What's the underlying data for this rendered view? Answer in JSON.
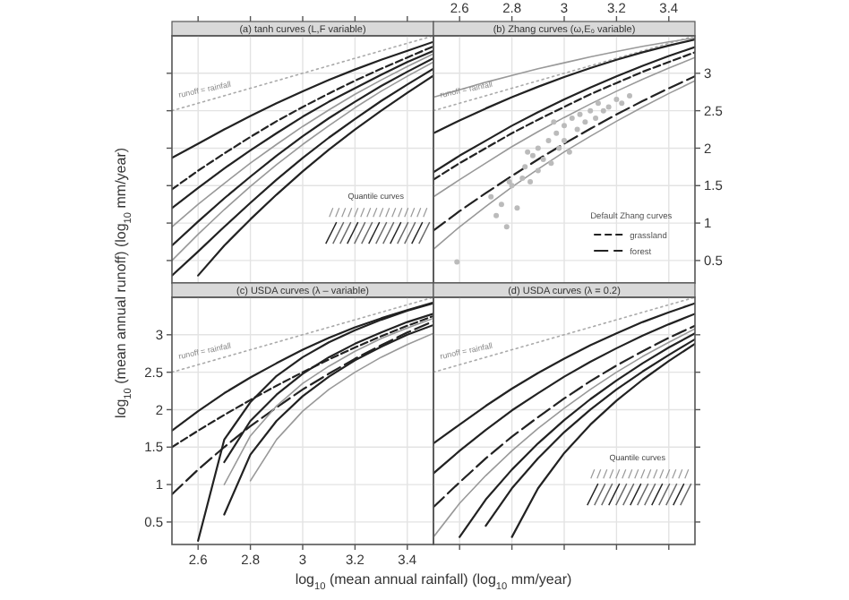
{
  "chart_data": [
    {
      "type": "line",
      "title": "(a) tanh curves (L,F variable)",
      "x": [
        2.5,
        2.6,
        2.7,
        2.8,
        2.9,
        3.0,
        3.1,
        3.2,
        3.3,
        3.4,
        3.5
      ],
      "xlim": [
        2.5,
        3.5
      ],
      "ylim": [
        0.2,
        3.5
      ],
      "xticks": [
        2.6,
        2.8,
        3.0,
        3.2,
        3.4
      ],
      "yticks": [
        0.5,
        1.0,
        1.5,
        2.0,
        2.5,
        3.0
      ],
      "tick_labels": false,
      "grid": true,
      "annotations": [
        "runoff = rainfall",
        "Quantile curves"
      ],
      "series": [
        {
          "color": "#aaaaaa",
          "line_style": "dotted",
          "values": [
            2.5,
            2.6,
            2.7,
            2.8,
            2.9,
            3.0,
            3.1,
            3.2,
            3.3,
            3.4,
            3.5
          ]
        },
        {
          "color": "#222222",
          "line_style": "solid",
          "values": [
            1.87,
            2.06,
            2.25,
            2.43,
            2.6,
            2.76,
            2.91,
            3.05,
            3.18,
            3.3,
            3.42
          ]
        },
        {
          "color": "#222222",
          "line_style": "dashed",
          "values": [
            1.45,
            1.7,
            1.93,
            2.15,
            2.36,
            2.55,
            2.73,
            2.9,
            3.06,
            3.21,
            3.36
          ]
        },
        {
          "color": "#222222",
          "line_style": "solid",
          "values": [
            1.2,
            1.47,
            1.73,
            1.97,
            2.2,
            2.42,
            2.62,
            2.8,
            2.98,
            3.15,
            3.3
          ]
        },
        {
          "color": "#999999",
          "line_style": "solid",
          "values": [
            0.95,
            1.25,
            1.53,
            1.8,
            2.05,
            2.29,
            2.51,
            2.72,
            2.91,
            3.09,
            3.26
          ]
        },
        {
          "color": "#222222",
          "line_style": "solid",
          "values": [
            0.7,
            1.02,
            1.33,
            1.62,
            1.9,
            2.16,
            2.4,
            2.62,
            2.83,
            3.02,
            3.2
          ]
        },
        {
          "color": "#999999",
          "line_style": "solid",
          "values": [
            0.5,
            0.85,
            1.18,
            1.49,
            1.78,
            2.05,
            2.3,
            2.54,
            2.76,
            2.96,
            3.15
          ]
        },
        {
          "color": "#222222",
          "line_style": "solid",
          "values": [
            0.3,
            0.62,
            0.95,
            1.27,
            1.58,
            1.87,
            2.14,
            2.39,
            2.63,
            2.85,
            3.06
          ]
        },
        {
          "color": "#222222",
          "line_style": "solid",
          "values": [
            null,
            0.3,
            0.7,
            1.05,
            1.38,
            1.69,
            1.98,
            2.25,
            2.5,
            2.74,
            2.97
          ]
        }
      ]
    },
    {
      "type": "line",
      "title": "(b) Zhang curves (ω,E₀ variable)",
      "x": [
        2.5,
        2.6,
        2.7,
        2.8,
        2.9,
        3.0,
        3.1,
        3.2,
        3.3,
        3.4,
        3.5
      ],
      "xlim": [
        2.5,
        3.5
      ],
      "ylim": [
        0.2,
        3.5
      ],
      "xticks": [
        2.6,
        2.8,
        3.0,
        3.2,
        3.4
      ],
      "yticks": [
        0.5,
        1.0,
        1.5,
        2.0,
        2.5,
        3.0
      ],
      "grid": true,
      "legend": "bottom right",
      "legend_title": "Default Zhang curves",
      "annotations": [
        "runoff = rainfall"
      ],
      "series": [
        {
          "color": "#aaaaaa",
          "line_style": "dotted",
          "values": [
            2.5,
            2.6,
            2.7,
            2.8,
            2.9,
            3.0,
            3.1,
            3.2,
            3.3,
            3.4,
            3.5
          ]
        },
        {
          "color": "#999999",
          "line_style": "solid",
          "values": [
            2.68,
            2.78,
            2.88,
            2.97,
            3.06,
            3.14,
            3.22,
            3.29,
            3.36,
            3.42,
            3.47
          ]
        },
        {
          "color": "#222222",
          "line_style": "solid",
          "values": [
            2.2,
            2.37,
            2.53,
            2.68,
            2.82,
            2.95,
            3.07,
            3.18,
            3.28,
            3.37,
            3.45
          ]
        },
        {
          "color": "#222222",
          "line_style": "solid",
          "values": [
            1.68,
            1.9,
            2.1,
            2.3,
            2.48,
            2.65,
            2.81,
            2.96,
            3.1,
            3.23,
            3.35
          ]
        },
        {
          "name": "grassland",
          "color": "#222222",
          "line_style": "dashed",
          "values": [
            1.58,
            1.8,
            2.0,
            2.2,
            2.38,
            2.55,
            2.72,
            2.87,
            3.02,
            3.15,
            3.28
          ]
        },
        {
          "color": "#999999",
          "line_style": "solid",
          "values": [
            1.35,
            1.58,
            1.8,
            2.02,
            2.22,
            2.41,
            2.59,
            2.76,
            2.92,
            3.07,
            3.21
          ]
        },
        {
          "name": "forest",
          "color": "#222222",
          "line_style": "longdash",
          "values": [
            0.9,
            1.16,
            1.4,
            1.63,
            1.85,
            2.06,
            2.26,
            2.45,
            2.63,
            2.8,
            2.96
          ]
        },
        {
          "color": "#999999",
          "line_style": "solid",
          "values": [
            0.65,
            0.95,
            1.22,
            1.48,
            1.72,
            1.95,
            2.16,
            2.36,
            2.55,
            2.73,
            2.9
          ]
        },
        {
          "type": "scatter",
          "marker": "circle",
          "color": "#bbbbbb",
          "x": [
            2.59,
            2.72,
            2.74,
            2.76,
            2.78,
            2.8,
            2.82,
            2.84,
            2.85,
            2.87,
            2.88,
            2.9,
            2.9,
            2.92,
            2.94,
            2.95,
            2.97,
            2.98,
            3.0,
            3.0,
            3.02,
            3.03,
            3.05,
            3.06,
            3.08,
            3.1,
            3.12,
            3.13,
            3.15,
            3.17,
            3.2,
            3.22,
            3.25,
            2.96,
            2.86,
            2.79
          ],
          "values": [
            0.48,
            1.35,
            1.1,
            1.25,
            0.95,
            1.5,
            1.2,
            1.6,
            1.75,
            1.55,
            1.9,
            1.7,
            2.0,
            1.85,
            2.1,
            1.8,
            2.2,
            2.0,
            2.3,
            2.1,
            1.95,
            2.4,
            2.25,
            2.45,
            2.35,
            2.5,
            2.4,
            2.6,
            2.5,
            2.55,
            2.65,
            2.6,
            2.7,
            2.35,
            1.95,
            1.55
          ]
        }
      ]
    },
    {
      "type": "line",
      "title": "(c) USDA curves (λ – variable)",
      "xlabel": "log$_{10}$ (mean annual rainfall) (log$_{10}$ mm/year)",
      "ylabel": "log$_{10}$ (mean annual runoff) (log$_{10}$ mm/year)",
      "x": [
        2.5,
        2.6,
        2.7,
        2.8,
        2.9,
        3.0,
        3.1,
        3.2,
        3.3,
        3.4,
        3.5
      ],
      "xlim": [
        2.5,
        3.5
      ],
      "ylim": [
        0.2,
        3.5
      ],
      "xticks": [
        2.6,
        2.8,
        3.0,
        3.2,
        3.4
      ],
      "yticks": [
        0.5,
        1.0,
        1.5,
        2.0,
        2.5,
        3.0
      ],
      "grid": true,
      "annotations": [
        "runoff = rainfall"
      ],
      "series": [
        {
          "color": "#aaaaaa",
          "line_style": "dotted",
          "values": [
            2.5,
            2.6,
            2.7,
            2.8,
            2.9,
            3.0,
            3.1,
            3.2,
            3.3,
            3.4,
            3.5
          ]
        },
        {
          "color": "#222222",
          "line_style": "solid",
          "values": [
            1.72,
            1.98,
            2.22,
            2.43,
            2.62,
            2.8,
            2.96,
            3.1,
            3.22,
            3.33,
            3.43
          ]
        },
        {
          "color": "#222222",
          "line_style": "dashed",
          "values": [
            1.5,
            1.72,
            1.93,
            2.13,
            2.32,
            2.5,
            2.67,
            2.83,
            2.98,
            3.12,
            3.25
          ]
        },
        {
          "color": "#222222",
          "line_style": "longdash",
          "values": [
            0.87,
            1.2,
            1.5,
            1.78,
            2.03,
            2.27,
            2.48,
            2.68,
            2.86,
            3.03,
            3.18
          ]
        },
        {
          "color": "#222222",
          "line_style": "solid",
          "values": [
            null,
            0.25,
            1.6,
            2.1,
            2.45,
            2.7,
            2.9,
            3.06,
            3.2,
            3.32,
            3.42
          ]
        },
        {
          "color": "#222222",
          "line_style": "solid",
          "values": [
            null,
            null,
            1.3,
            1.85,
            2.2,
            2.48,
            2.7,
            2.88,
            3.03,
            3.17,
            3.28
          ]
        },
        {
          "color": "#999999",
          "line_style": "solid",
          "values": [
            null,
            null,
            1.0,
            1.65,
            2.05,
            2.35,
            2.58,
            2.78,
            2.95,
            3.09,
            3.22
          ]
        },
        {
          "color": "#222222",
          "line_style": "solid",
          "values": [
            null,
            null,
            0.6,
            1.4,
            1.85,
            2.18,
            2.44,
            2.66,
            2.84,
            3.0,
            3.13
          ]
        },
        {
          "color": "#999999",
          "line_style": "solid",
          "values": [
            null,
            null,
            null,
            1.05,
            1.6,
            1.98,
            2.27,
            2.5,
            2.7,
            2.87,
            3.02
          ]
        }
      ]
    },
    {
      "type": "line",
      "title": "(d) USDA curves (λ = 0.2)",
      "x": [
        2.5,
        2.6,
        2.7,
        2.8,
        2.9,
        3.0,
        3.1,
        3.2,
        3.3,
        3.4,
        3.5
      ],
      "xlim": [
        2.5,
        3.5
      ],
      "ylim": [
        0.2,
        3.5
      ],
      "xticks": [
        2.6,
        2.8,
        3.0,
        3.2,
        3.4
      ],
      "yticks": [
        0.5,
        1.0,
        1.5,
        2.0,
        2.5,
        3.0
      ],
      "tick_labels": false,
      "grid": true,
      "annotations": [
        "runoff = rainfall",
        "Quantile curves"
      ],
      "series": [
        {
          "color": "#aaaaaa",
          "line_style": "dotted",
          "values": [
            2.5,
            2.6,
            2.7,
            2.8,
            2.9,
            3.0,
            3.1,
            3.2,
            3.3,
            3.4,
            3.5
          ]
        },
        {
          "color": "#222222",
          "line_style": "solid",
          "values": [
            1.55,
            1.8,
            2.05,
            2.28,
            2.49,
            2.68,
            2.86,
            3.02,
            3.17,
            3.3,
            3.42
          ]
        },
        {
          "color": "#222222",
          "line_style": "solid",
          "values": [
            1.15,
            1.45,
            1.73,
            1.99,
            2.22,
            2.44,
            2.64,
            2.82,
            2.99,
            3.14,
            3.28
          ]
        },
        {
          "color": "#222222",
          "line_style": "longdash",
          "values": [
            0.7,
            1.03,
            1.35,
            1.64,
            1.9,
            2.15,
            2.38,
            2.59,
            2.78,
            2.96,
            3.12
          ]
        },
        {
          "color": "#999999",
          "line_style": "solid",
          "values": [
            0.3,
            0.75,
            1.12,
            1.45,
            1.75,
            2.02,
            2.27,
            2.5,
            2.71,
            2.9,
            3.08
          ]
        },
        {
          "color": "#222222",
          "line_style": "solid",
          "values": [
            null,
            0.3,
            0.8,
            1.2,
            1.55,
            1.86,
            2.14,
            2.39,
            2.62,
            2.83,
            3.02
          ]
        },
        {
          "color": "#222222",
          "line_style": "solid",
          "values": [
            null,
            null,
            0.45,
            0.95,
            1.35,
            1.7,
            2.0,
            2.27,
            2.51,
            2.73,
            2.94
          ]
        },
        {
          "color": "#222222",
          "line_style": "solid",
          "values": [
            null,
            null,
            null,
            0.3,
            0.95,
            1.42,
            1.8,
            2.12,
            2.4,
            2.65,
            2.88
          ]
        }
      ]
    }
  ]
}
